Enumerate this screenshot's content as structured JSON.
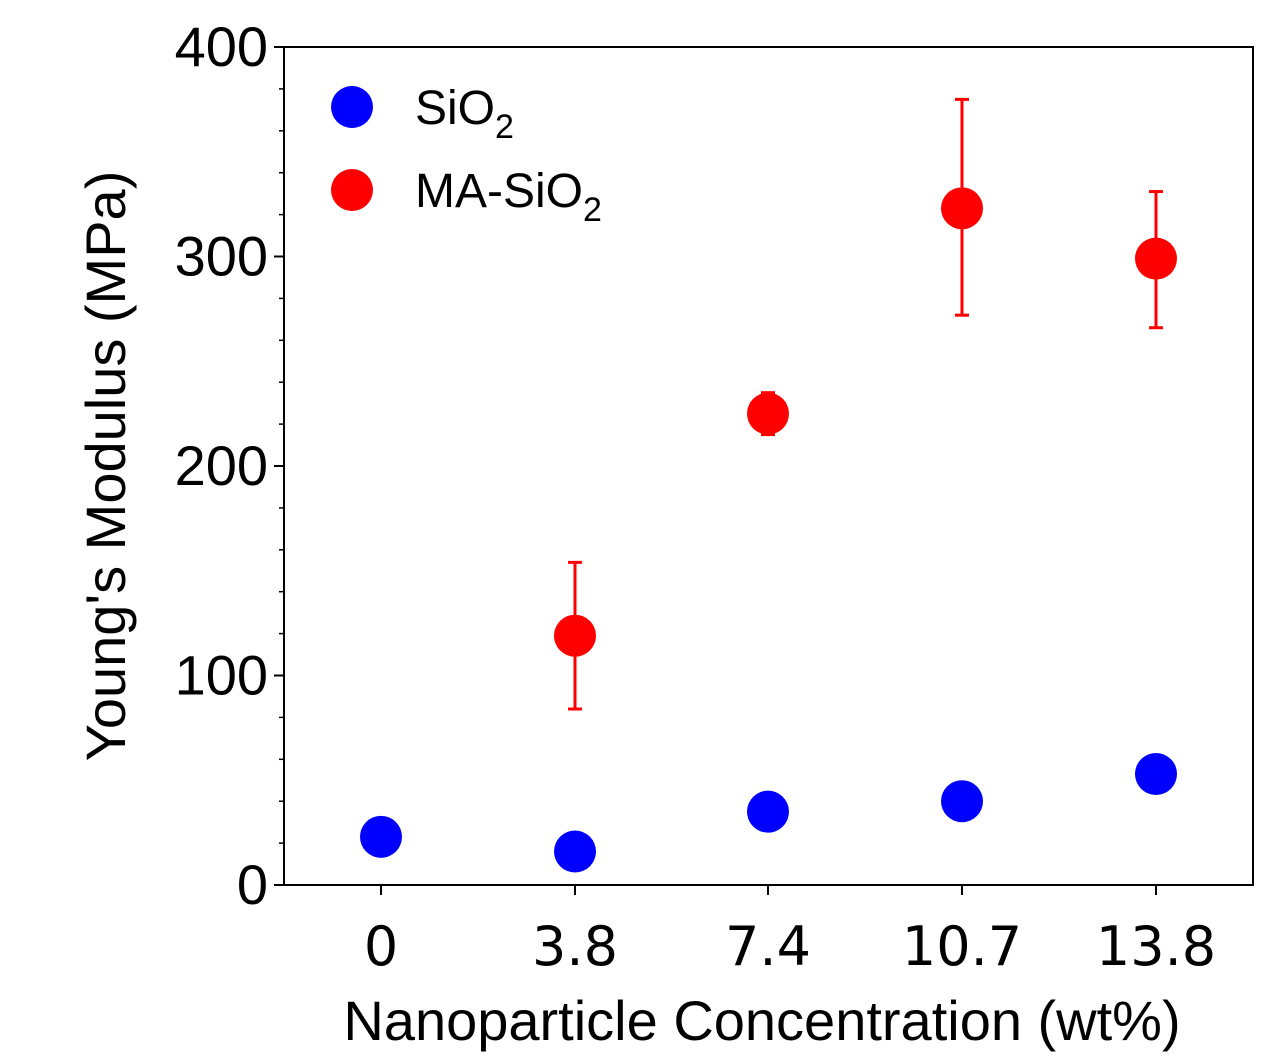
{
  "chart_data": {
    "type": "scatter",
    "title": "",
    "xlabel": "Nanoparticle Concentration (wt%)",
    "ylabel": "Young's Modulus (MPa)",
    "categories": [
      "0",
      "3.8",
      "7.4",
      "10.7",
      "13.8"
    ],
    "ylim": [
      0,
      400
    ],
    "yticks": [
      "0",
      "100",
      "200",
      "300",
      "400"
    ],
    "grid": false,
    "legend_position": "top-left",
    "series": [
      {
        "name": "SiO2",
        "legend_base": "SiO",
        "legend_sub": "2",
        "color": "#0000ff",
        "points": [
          {
            "x": "0",
            "y": 23,
            "err": null
          },
          {
            "x": "3.8",
            "y": 16,
            "err": null
          },
          {
            "x": "7.4",
            "y": 35,
            "err": null
          },
          {
            "x": "10.7",
            "y": 40,
            "err": null
          },
          {
            "x": "13.8",
            "y": 53,
            "err": null
          }
        ]
      },
      {
        "name": "MA-SiO2",
        "legend_base": "MA-SiO",
        "legend_sub": "2",
        "color": "#ff0000",
        "points": [
          {
            "x": "3.8",
            "y": 119,
            "err": [
              84,
              154
            ]
          },
          {
            "x": "7.4",
            "y": 225,
            "err": [
              215,
              235
            ]
          },
          {
            "x": "10.7",
            "y": 323,
            "err": [
              272,
              375
            ]
          },
          {
            "x": "13.8",
            "y": 299,
            "err": [
              266,
              331
            ]
          }
        ]
      }
    ]
  }
}
